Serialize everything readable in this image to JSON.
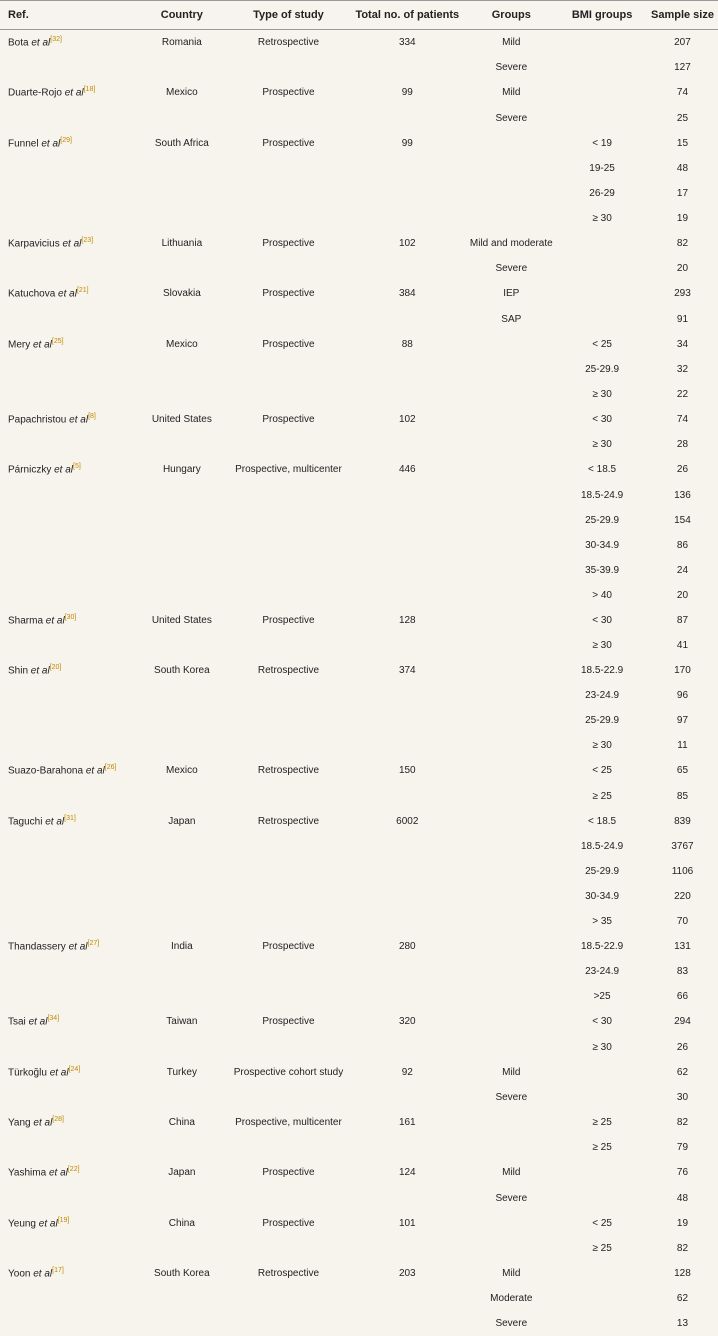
{
  "headers": {
    "ref": "Ref.",
    "country": "Country",
    "type": "Type of study",
    "total": "Total no. of patients",
    "groups": "Groups",
    "bmi": "BMI groups",
    "sample": "Sample size"
  },
  "rows": [
    {
      "ref_prefix": "Bota ",
      "ref_italic": "et al",
      "ref_sup": "[32]",
      "country": "Romania",
      "type": "Retrospective",
      "total": "334",
      "group": "Mild",
      "bmi": "",
      "sample": "207"
    },
    {
      "ref_prefix": "",
      "ref_italic": "",
      "ref_sup": "",
      "country": "",
      "type": "",
      "total": "",
      "group": "Severe",
      "bmi": "",
      "sample": "127"
    },
    {
      "ref_prefix": "Duarte-Rojo ",
      "ref_italic": "et al",
      "ref_sup": "[18]",
      "country": "Mexico",
      "type": "Prospective",
      "total": "99",
      "group": "Mild",
      "bmi": "",
      "sample": "74"
    },
    {
      "ref_prefix": "",
      "ref_italic": "",
      "ref_sup": "",
      "country": "",
      "type": "",
      "total": "",
      "group": "Severe",
      "bmi": "",
      "sample": "25"
    },
    {
      "ref_prefix": "Funnel ",
      "ref_italic": "et al",
      "ref_sup": "[29]",
      "country": "South Africa",
      "type": "Prospective",
      "total": "99",
      "group": "",
      "bmi": "< 19",
      "sample": "15"
    },
    {
      "ref_prefix": "",
      "ref_italic": "",
      "ref_sup": "",
      "country": "",
      "type": "",
      "total": "",
      "group": "",
      "bmi": "19-25",
      "sample": "48"
    },
    {
      "ref_prefix": "",
      "ref_italic": "",
      "ref_sup": "",
      "country": "",
      "type": "",
      "total": "",
      "group": "",
      "bmi": "26-29",
      "sample": "17"
    },
    {
      "ref_prefix": "",
      "ref_italic": "",
      "ref_sup": "",
      "country": "",
      "type": "",
      "total": "",
      "group": "",
      "bmi": "≥ 30",
      "sample": "19"
    },
    {
      "ref_prefix": "Karpavicius ",
      "ref_italic": "et al",
      "ref_sup": "[23]",
      "country": "Lithuania",
      "type": "Prospective",
      "total": "102",
      "group": "Mild and moderate",
      "bmi": "",
      "sample": "82"
    },
    {
      "ref_prefix": "",
      "ref_italic": "",
      "ref_sup": "",
      "country": "",
      "type": "",
      "total": "",
      "group": "Severe",
      "bmi": "",
      "sample": "20"
    },
    {
      "ref_prefix": "Katuchova ",
      "ref_italic": "et al",
      "ref_sup": "[21]",
      "country": "Slovakia",
      "type": "Prospective",
      "total": "384",
      "group": "IEP",
      "bmi": "",
      "sample": "293"
    },
    {
      "ref_prefix": "",
      "ref_italic": "",
      "ref_sup": "",
      "country": "",
      "type": "",
      "total": "",
      "group": "SAP",
      "bmi": "",
      "sample": "91"
    },
    {
      "ref_prefix": "Mery ",
      "ref_italic": "et al",
      "ref_sup": "[25]",
      "country": "Mexico",
      "type": "Prospective",
      "total": "88",
      "group": "",
      "bmi": "< 25",
      "sample": "34"
    },
    {
      "ref_prefix": "",
      "ref_italic": "",
      "ref_sup": "",
      "country": "",
      "type": "",
      "total": "",
      "group": "",
      "bmi": "25-29.9",
      "sample": "32"
    },
    {
      "ref_prefix": "",
      "ref_italic": "",
      "ref_sup": "",
      "country": "",
      "type": "",
      "total": "",
      "group": "",
      "bmi": "≥ 30",
      "sample": "22"
    },
    {
      "ref_prefix": "Papachristou ",
      "ref_italic": "et al",
      "ref_sup": "[8]",
      "country": "United States",
      "type": "Prospective",
      "total": "102",
      "group": "",
      "bmi": "< 30",
      "sample": "74"
    },
    {
      "ref_prefix": "",
      "ref_italic": "",
      "ref_sup": "",
      "country": "",
      "type": "",
      "total": "",
      "group": "",
      "bmi": "≥ 30",
      "sample": "28"
    },
    {
      "ref_prefix": "Párniczky ",
      "ref_italic": "et al",
      "ref_sup": "[5]",
      "country": "Hungary",
      "type": "Prospective, multicenter",
      "total": "446",
      "group": "",
      "bmi": "< 18.5",
      "sample": "26"
    },
    {
      "ref_prefix": "",
      "ref_italic": "",
      "ref_sup": "",
      "country": "",
      "type": "",
      "total": "",
      "group": "",
      "bmi": "18.5-24.9",
      "sample": "136"
    },
    {
      "ref_prefix": "",
      "ref_italic": "",
      "ref_sup": "",
      "country": "",
      "type": "",
      "total": "",
      "group": "",
      "bmi": "25-29.9",
      "sample": "154"
    },
    {
      "ref_prefix": "",
      "ref_italic": "",
      "ref_sup": "",
      "country": "",
      "type": "",
      "total": "",
      "group": "",
      "bmi": "30-34.9",
      "sample": "86"
    },
    {
      "ref_prefix": "",
      "ref_italic": "",
      "ref_sup": "",
      "country": "",
      "type": "",
      "total": "",
      "group": "",
      "bmi": "35-39.9",
      "sample": "24"
    },
    {
      "ref_prefix": "",
      "ref_italic": "",
      "ref_sup": "",
      "country": "",
      "type": "",
      "total": "",
      "group": "",
      "bmi": "> 40",
      "sample": "20"
    },
    {
      "ref_prefix": "Sharma ",
      "ref_italic": "et al",
      "ref_sup": "[30]",
      "country": "United States",
      "type": "Prospective",
      "total": "128",
      "group": "",
      "bmi": "< 30",
      "sample": "87"
    },
    {
      "ref_prefix": "",
      "ref_italic": "",
      "ref_sup": "",
      "country": "",
      "type": "",
      "total": "",
      "group": "",
      "bmi": "≥ 30",
      "sample": "41"
    },
    {
      "ref_prefix": "Shin ",
      "ref_italic": "et al",
      "ref_sup": "[20]",
      "country": "South Korea",
      "type": "Retrospective",
      "total": "374",
      "group": "",
      "bmi": "18.5-22.9",
      "sample": "170"
    },
    {
      "ref_prefix": "",
      "ref_italic": "",
      "ref_sup": "",
      "country": "",
      "type": "",
      "total": "",
      "group": "",
      "bmi": "23-24.9",
      "sample": "96"
    },
    {
      "ref_prefix": "",
      "ref_italic": "",
      "ref_sup": "",
      "country": "",
      "type": "",
      "total": "",
      "group": "",
      "bmi": "25-29.9",
      "sample": "97"
    },
    {
      "ref_prefix": "",
      "ref_italic": "",
      "ref_sup": "",
      "country": "",
      "type": "",
      "total": "",
      "group": "",
      "bmi": "≥ 30",
      "sample": "11"
    },
    {
      "ref_prefix": "Suazo-Barahona ",
      "ref_italic": "et al",
      "ref_sup": "[26]",
      "country": "Mexico",
      "type": "Retrospective",
      "total": "150",
      "group": "",
      "bmi": "< 25",
      "sample": "65"
    },
    {
      "ref_prefix": "",
      "ref_italic": "",
      "ref_sup": "",
      "country": "",
      "type": "",
      "total": "",
      "group": "",
      "bmi": "≥ 25",
      "sample": "85"
    },
    {
      "ref_prefix": "Taguchi ",
      "ref_italic": "et al",
      "ref_sup": "[31]",
      "country": "Japan",
      "type": "Retrospective",
      "total": "6002",
      "group": "",
      "bmi": "< 18.5",
      "sample": "839"
    },
    {
      "ref_prefix": "",
      "ref_italic": "",
      "ref_sup": "",
      "country": "",
      "type": "",
      "total": "",
      "group": "",
      "bmi": "18.5-24.9",
      "sample": "3767"
    },
    {
      "ref_prefix": "",
      "ref_italic": "",
      "ref_sup": "",
      "country": "",
      "type": "",
      "total": "",
      "group": "",
      "bmi": "25-29.9",
      "sample": "1106"
    },
    {
      "ref_prefix": "",
      "ref_italic": "",
      "ref_sup": "",
      "country": "",
      "type": "",
      "total": "",
      "group": "",
      "bmi": "30-34.9",
      "sample": "220"
    },
    {
      "ref_prefix": "",
      "ref_italic": "",
      "ref_sup": "",
      "country": "",
      "type": "",
      "total": "",
      "group": "",
      "bmi": "> 35",
      "sample": "70"
    },
    {
      "ref_prefix": "Thandassery ",
      "ref_italic": "et al",
      "ref_sup": "[27]",
      "country": "India",
      "type": "Prospective",
      "total": "280",
      "group": "",
      "bmi": "18.5-22.9",
      "sample": "131"
    },
    {
      "ref_prefix": "",
      "ref_italic": "",
      "ref_sup": "",
      "country": "",
      "type": "",
      "total": "",
      "group": "",
      "bmi": "23-24.9",
      "sample": "83"
    },
    {
      "ref_prefix": "",
      "ref_italic": "",
      "ref_sup": "",
      "country": "",
      "type": "",
      "total": "",
      "group": "",
      "bmi": ">25",
      "sample": "66"
    },
    {
      "ref_prefix": "Tsai ",
      "ref_italic": "et al",
      "ref_sup": "[34]",
      "country": "Taiwan",
      "type": "Prospective",
      "total": "320",
      "group": "",
      "bmi": "< 30",
      "sample": "294"
    },
    {
      "ref_prefix": "",
      "ref_italic": "",
      "ref_sup": "",
      "country": "",
      "type": "",
      "total": "",
      "group": "",
      "bmi": "≥ 30",
      "sample": "26"
    },
    {
      "ref_prefix": "Türkoğlu ",
      "ref_italic": "et al",
      "ref_sup": "[24]",
      "country": "Turkey",
      "type": "Prospective cohort study",
      "total": "92",
      "group": "Mild",
      "bmi": "",
      "sample": "62"
    },
    {
      "ref_prefix": "",
      "ref_italic": "",
      "ref_sup": "",
      "country": "",
      "type": "",
      "total": "",
      "group": "Severe",
      "bmi": "",
      "sample": "30"
    },
    {
      "ref_prefix": "Yang ",
      "ref_italic": "et al",
      "ref_sup": "[28]",
      "country": "China",
      "type": "Prospective, multicenter",
      "total": "161",
      "group": "",
      "bmi": "≥ 25",
      "sample": "82"
    },
    {
      "ref_prefix": "",
      "ref_italic": "",
      "ref_sup": "",
      "country": "",
      "type": "",
      "total": "",
      "group": "",
      "bmi": "≥ 25",
      "sample": "79"
    },
    {
      "ref_prefix": "Yashima ",
      "ref_italic": "et al",
      "ref_sup": "[22]",
      "country": "Japan",
      "type": "Prospective",
      "total": "124",
      "group": "Mild",
      "bmi": "",
      "sample": "76"
    },
    {
      "ref_prefix": "",
      "ref_italic": "",
      "ref_sup": "",
      "country": "",
      "type": "",
      "total": "",
      "group": "Severe",
      "bmi": "",
      "sample": "48"
    },
    {
      "ref_prefix": "Yeung ",
      "ref_italic": "et al",
      "ref_sup": "[19]",
      "country": "China",
      "type": "Prospective",
      "total": "101",
      "group": "",
      "bmi": "< 25",
      "sample": "19"
    },
    {
      "ref_prefix": "",
      "ref_italic": "",
      "ref_sup": "",
      "country": "",
      "type": "",
      "total": "",
      "group": "",
      "bmi": "≥ 25",
      "sample": "82"
    },
    {
      "ref_prefix": "Yoon ",
      "ref_italic": "et al",
      "ref_sup": "[17]",
      "country": "South Korea",
      "type": "Retrospective",
      "total": "203",
      "group": "Mild",
      "bmi": "",
      "sample": "128"
    },
    {
      "ref_prefix": "",
      "ref_italic": "",
      "ref_sup": "",
      "country": "",
      "type": "",
      "total": "",
      "group": "Moderate",
      "bmi": "",
      "sample": "62"
    },
    {
      "ref_prefix": "",
      "ref_italic": "",
      "ref_sup": "",
      "country": "",
      "type": "",
      "total": "",
      "group": "Severe",
      "bmi": "",
      "sample": "13"
    }
  ]
}
